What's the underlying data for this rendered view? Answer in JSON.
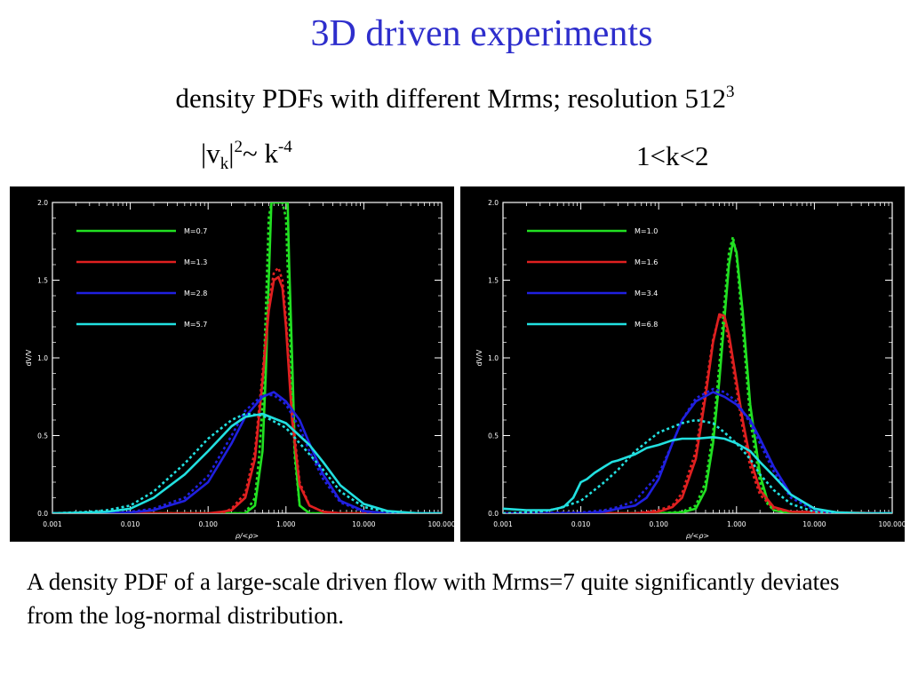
{
  "slide": {
    "title": "3D driven experiments",
    "subtitle_main": "density PDFs with different Mrms; resolution 512",
    "subtitle_sup": "3",
    "left_label": {
      "a": "|v",
      "sub": "k",
      "b": "|",
      "sup1": "2",
      "c": "~ k",
      "sup2": "-4"
    },
    "right_label": "1<k<2",
    "caption": "A density PDF of a large-scale driven flow with Mrms=7 quite significantly deviates from the log-normal distribution."
  },
  "chart_data": [
    {
      "type": "line",
      "xscale": "log",
      "xlim": [
        0.001,
        100
      ],
      "ylim": [
        0,
        2.0
      ],
      "xticks": [
        "0.001",
        "0.010",
        "0.100",
        "1.000",
        "10.000",
        "100.000"
      ],
      "yticks": [
        "0.0",
        "0.5",
        "1.0",
        "1.5",
        "2.0"
      ],
      "xlabel": "ρ/<ρ>",
      "ylabel": "dV/V",
      "background": "#000000",
      "legend_position": "top-left",
      "series": [
        {
          "name": "M=0.7",
          "color": "#22e022",
          "x": [
            0.001,
            0.15,
            0.3,
            0.4,
            0.5,
            0.55,
            0.6,
            0.65,
            0.7,
            0.75,
            0.8,
            0.9,
            1.0,
            1.05,
            1.1,
            1.2,
            1.3,
            1.5,
            2,
            3,
            100
          ],
          "y": [
            0,
            0,
            0,
            0.05,
            0.4,
            0.9,
            1.5,
            2.0,
            2.0,
            2.0,
            2.0,
            2.0,
            2.0,
            2.0,
            1.6,
            1.0,
            0.4,
            0.05,
            0,
            0,
            0
          ],
          "dashed": {
            "x": [
              0.001,
              0.15,
              0.3,
              0.4,
              0.45,
              0.5,
              0.55,
              0.6,
              0.65,
              0.7,
              0.8,
              0.9,
              1.0,
              1.1,
              1.2,
              1.3,
              1.5,
              2,
              3,
              100
            ],
            "y": [
              0,
              0,
              0,
              0.1,
              0.35,
              0.7,
              1.3,
              1.9,
              2.0,
              2.0,
              2.0,
              2.0,
              1.9,
              1.3,
              0.8,
              0.35,
              0.05,
              0,
              0,
              0
            ]
          }
        },
        {
          "name": "M=1.3",
          "color": "#e02020",
          "x": [
            0.001,
            0.05,
            0.1,
            0.15,
            0.2,
            0.3,
            0.4,
            0.5,
            0.6,
            0.7,
            0.8,
            0.9,
            1.0,
            1.2,
            1.5,
            2,
            3,
            5,
            100
          ],
          "y": [
            0,
            0,
            0,
            0.01,
            0.02,
            0.1,
            0.35,
            0.85,
            1.3,
            1.5,
            1.52,
            1.45,
            1.2,
            0.6,
            0.18,
            0.05,
            0.01,
            0,
            0
          ],
          "dashed": {
            "x": [
              0.001,
              0.05,
              0.1,
              0.15,
              0.2,
              0.3,
              0.4,
              0.5,
              0.6,
              0.7,
              0.8,
              0.9,
              1.0,
              1.2,
              1.5,
              2,
              3,
              5,
              100
            ],
            "y": [
              0,
              0,
              0,
              0.0,
              0.03,
              0.13,
              0.4,
              0.9,
              1.35,
              1.55,
              1.58,
              1.5,
              1.25,
              0.65,
              0.2,
              0.05,
              0.01,
              0,
              0
            ]
          }
        },
        {
          "name": "M=2.8",
          "color": "#2020e0",
          "x": [
            0.001,
            0.005,
            0.01,
            0.02,
            0.05,
            0.1,
            0.2,
            0.3,
            0.5,
            0.7,
            1.0,
            1.5,
            2,
            3,
            5,
            10,
            20,
            100
          ],
          "y": [
            0,
            0,
            0.005,
            0.02,
            0.08,
            0.2,
            0.45,
            0.62,
            0.75,
            0.78,
            0.72,
            0.6,
            0.45,
            0.25,
            0.08,
            0.015,
            0,
            0
          ],
          "dashed": {
            "x": [
              0.001,
              0.005,
              0.01,
              0.02,
              0.05,
              0.1,
              0.2,
              0.3,
              0.5,
              0.7,
              1.0,
              1.5,
              2,
              3,
              5,
              10,
              20,
              100
            ],
            "y": [
              0,
              0,
              0.01,
              0.03,
              0.1,
              0.24,
              0.5,
              0.66,
              0.76,
              0.76,
              0.7,
              0.55,
              0.4,
              0.22,
              0.07,
              0.01,
              0,
              0
            ]
          }
        },
        {
          "name": "M=5.7",
          "color": "#22e0e0",
          "x": [
            0.001,
            0.003,
            0.005,
            0.01,
            0.02,
            0.05,
            0.1,
            0.2,
            0.3,
            0.5,
            1.0,
            2,
            3,
            5,
            10,
            20,
            50,
            100
          ],
          "y": [
            0,
            0.005,
            0.01,
            0.03,
            0.1,
            0.25,
            0.4,
            0.56,
            0.62,
            0.64,
            0.58,
            0.44,
            0.33,
            0.18,
            0.06,
            0.015,
            0,
            0
          ],
          "dashed": {
            "x": [
              0.001,
              0.003,
              0.005,
              0.01,
              0.02,
              0.05,
              0.1,
              0.2,
              0.3,
              0.5,
              1.0,
              2,
              3,
              5,
              10,
              20,
              50,
              100
            ],
            "y": [
              0,
              0.01,
              0.02,
              0.05,
              0.14,
              0.32,
              0.48,
              0.6,
              0.64,
              0.63,
              0.55,
              0.38,
              0.28,
              0.14,
              0.04,
              0.01,
              0,
              0
            ]
          }
        }
      ]
    },
    {
      "type": "line",
      "xscale": "log",
      "xlim": [
        0.001,
        100
      ],
      "ylim": [
        0,
        2.0
      ],
      "xticks": [
        "0.001",
        "0.010",
        "0.100",
        "1.000",
        "10.000",
        "100.000"
      ],
      "yticks": [
        "0.0",
        "0.5",
        "1.0",
        "1.5",
        "2.0"
      ],
      "xlabel": "ρ/<ρ>",
      "ylabel": "dV/V",
      "background": "#000000",
      "legend_position": "top-left",
      "series": [
        {
          "name": "M=1.0",
          "color": "#22e022",
          "x": [
            0.001,
            0.1,
            0.2,
            0.3,
            0.4,
            0.5,
            0.6,
            0.7,
            0.8,
            0.9,
            1.0,
            1.2,
            1.5,
            2,
            2.5,
            3,
            5,
            100
          ],
          "y": [
            0,
            0,
            0.005,
            0.03,
            0.15,
            0.45,
            0.85,
            1.25,
            1.6,
            1.75,
            1.68,
            1.3,
            0.7,
            0.25,
            0.08,
            0.02,
            0,
            0
          ],
          "dashed": {
            "x": [
              0.001,
              0.1,
              0.2,
              0.3,
              0.4,
              0.5,
              0.6,
              0.7,
              0.8,
              0.9,
              1.0,
              1.2,
              1.5,
              2,
              2.5,
              3,
              5,
              100
            ],
            "y": [
              0,
              0,
              0.01,
              0.05,
              0.2,
              0.52,
              0.95,
              1.35,
              1.68,
              1.78,
              1.65,
              1.2,
              0.6,
              0.2,
              0.06,
              0.02,
              0,
              0
            ]
          }
        },
        {
          "name": "M=1.6",
          "color": "#e02020",
          "x": [
            0.001,
            0.05,
            0.1,
            0.15,
            0.2,
            0.3,
            0.4,
            0.5,
            0.6,
            0.7,
            0.8,
            1.0,
            1.2,
            1.5,
            2,
            3,
            5,
            100
          ],
          "y": [
            0,
            0,
            0.01,
            0.04,
            0.1,
            0.35,
            0.75,
            1.1,
            1.28,
            1.27,
            1.15,
            0.85,
            0.6,
            0.35,
            0.15,
            0.04,
            0.01,
            0
          ],
          "dashed": {
            "x": [
              0.001,
              0.05,
              0.1,
              0.15,
              0.2,
              0.3,
              0.4,
              0.5,
              0.6,
              0.7,
              0.8,
              1.0,
              1.2,
              1.5,
              2,
              3,
              5,
              100
            ],
            "y": [
              0,
              0,
              0.02,
              0.05,
              0.13,
              0.4,
              0.8,
              1.12,
              1.27,
              1.24,
              1.1,
              0.8,
              0.55,
              0.3,
              0.12,
              0.03,
              0.01,
              0
            ]
          }
        },
        {
          "name": "M=3.4",
          "color": "#2020e0",
          "x": [
            0.001,
            0.01,
            0.02,
            0.03,
            0.05,
            0.07,
            0.1,
            0.15,
            0.2,
            0.3,
            0.5,
            0.7,
            1.0,
            1.5,
            2,
            3,
            5,
            10,
            20,
            100
          ],
          "y": [
            0,
            0,
            0.01,
            0.03,
            0.05,
            0.1,
            0.22,
            0.45,
            0.6,
            0.72,
            0.78,
            0.75,
            0.7,
            0.6,
            0.48,
            0.3,
            0.12,
            0.03,
            0,
            0
          ],
          "dashed": {
            "x": [
              0.001,
              0.01,
              0.02,
              0.03,
              0.05,
              0.1,
              0.15,
              0.2,
              0.3,
              0.5,
              0.7,
              1.0,
              1.5,
              2,
              3,
              5,
              10,
              20,
              100
            ],
            "y": [
              0,
              0.005,
              0.02,
              0.04,
              0.08,
              0.25,
              0.45,
              0.6,
              0.74,
              0.8,
              0.78,
              0.72,
              0.58,
              0.45,
              0.27,
              0.1,
              0.02,
              0,
              0
            ]
          }
        },
        {
          "name": "M=6.8",
          "color": "#22e0e0",
          "x": [
            0.001,
            0.002,
            0.004,
            0.006,
            0.008,
            0.01,
            0.012,
            0.015,
            0.02,
            0.025,
            0.03,
            0.05,
            0.07,
            0.1,
            0.15,
            0.2,
            0.3,
            0.5,
            0.7,
            1.0,
            1.5,
            2,
            3,
            5,
            10,
            20,
            50,
            100
          ],
          "y": [
            0.03,
            0.02,
            0.02,
            0.04,
            0.1,
            0.2,
            0.22,
            0.26,
            0.3,
            0.33,
            0.34,
            0.38,
            0.42,
            0.44,
            0.47,
            0.48,
            0.48,
            0.49,
            0.48,
            0.45,
            0.4,
            0.33,
            0.24,
            0.12,
            0.03,
            0.005,
            0,
            0
          ],
          "dashed": {
            "x": [
              0.001,
              0.003,
              0.005,
              0.01,
              0.02,
              0.03,
              0.05,
              0.1,
              0.2,
              0.3,
              0.5,
              0.7,
              1.0,
              1.5,
              2,
              3,
              5,
              10,
              20,
              100
            ],
            "y": [
              0,
              0.01,
              0.03,
              0.08,
              0.2,
              0.28,
              0.4,
              0.52,
              0.58,
              0.6,
              0.58,
              0.52,
              0.45,
              0.35,
              0.25,
              0.15,
              0.06,
              0.01,
              0,
              0
            ]
          }
        }
      ]
    }
  ]
}
